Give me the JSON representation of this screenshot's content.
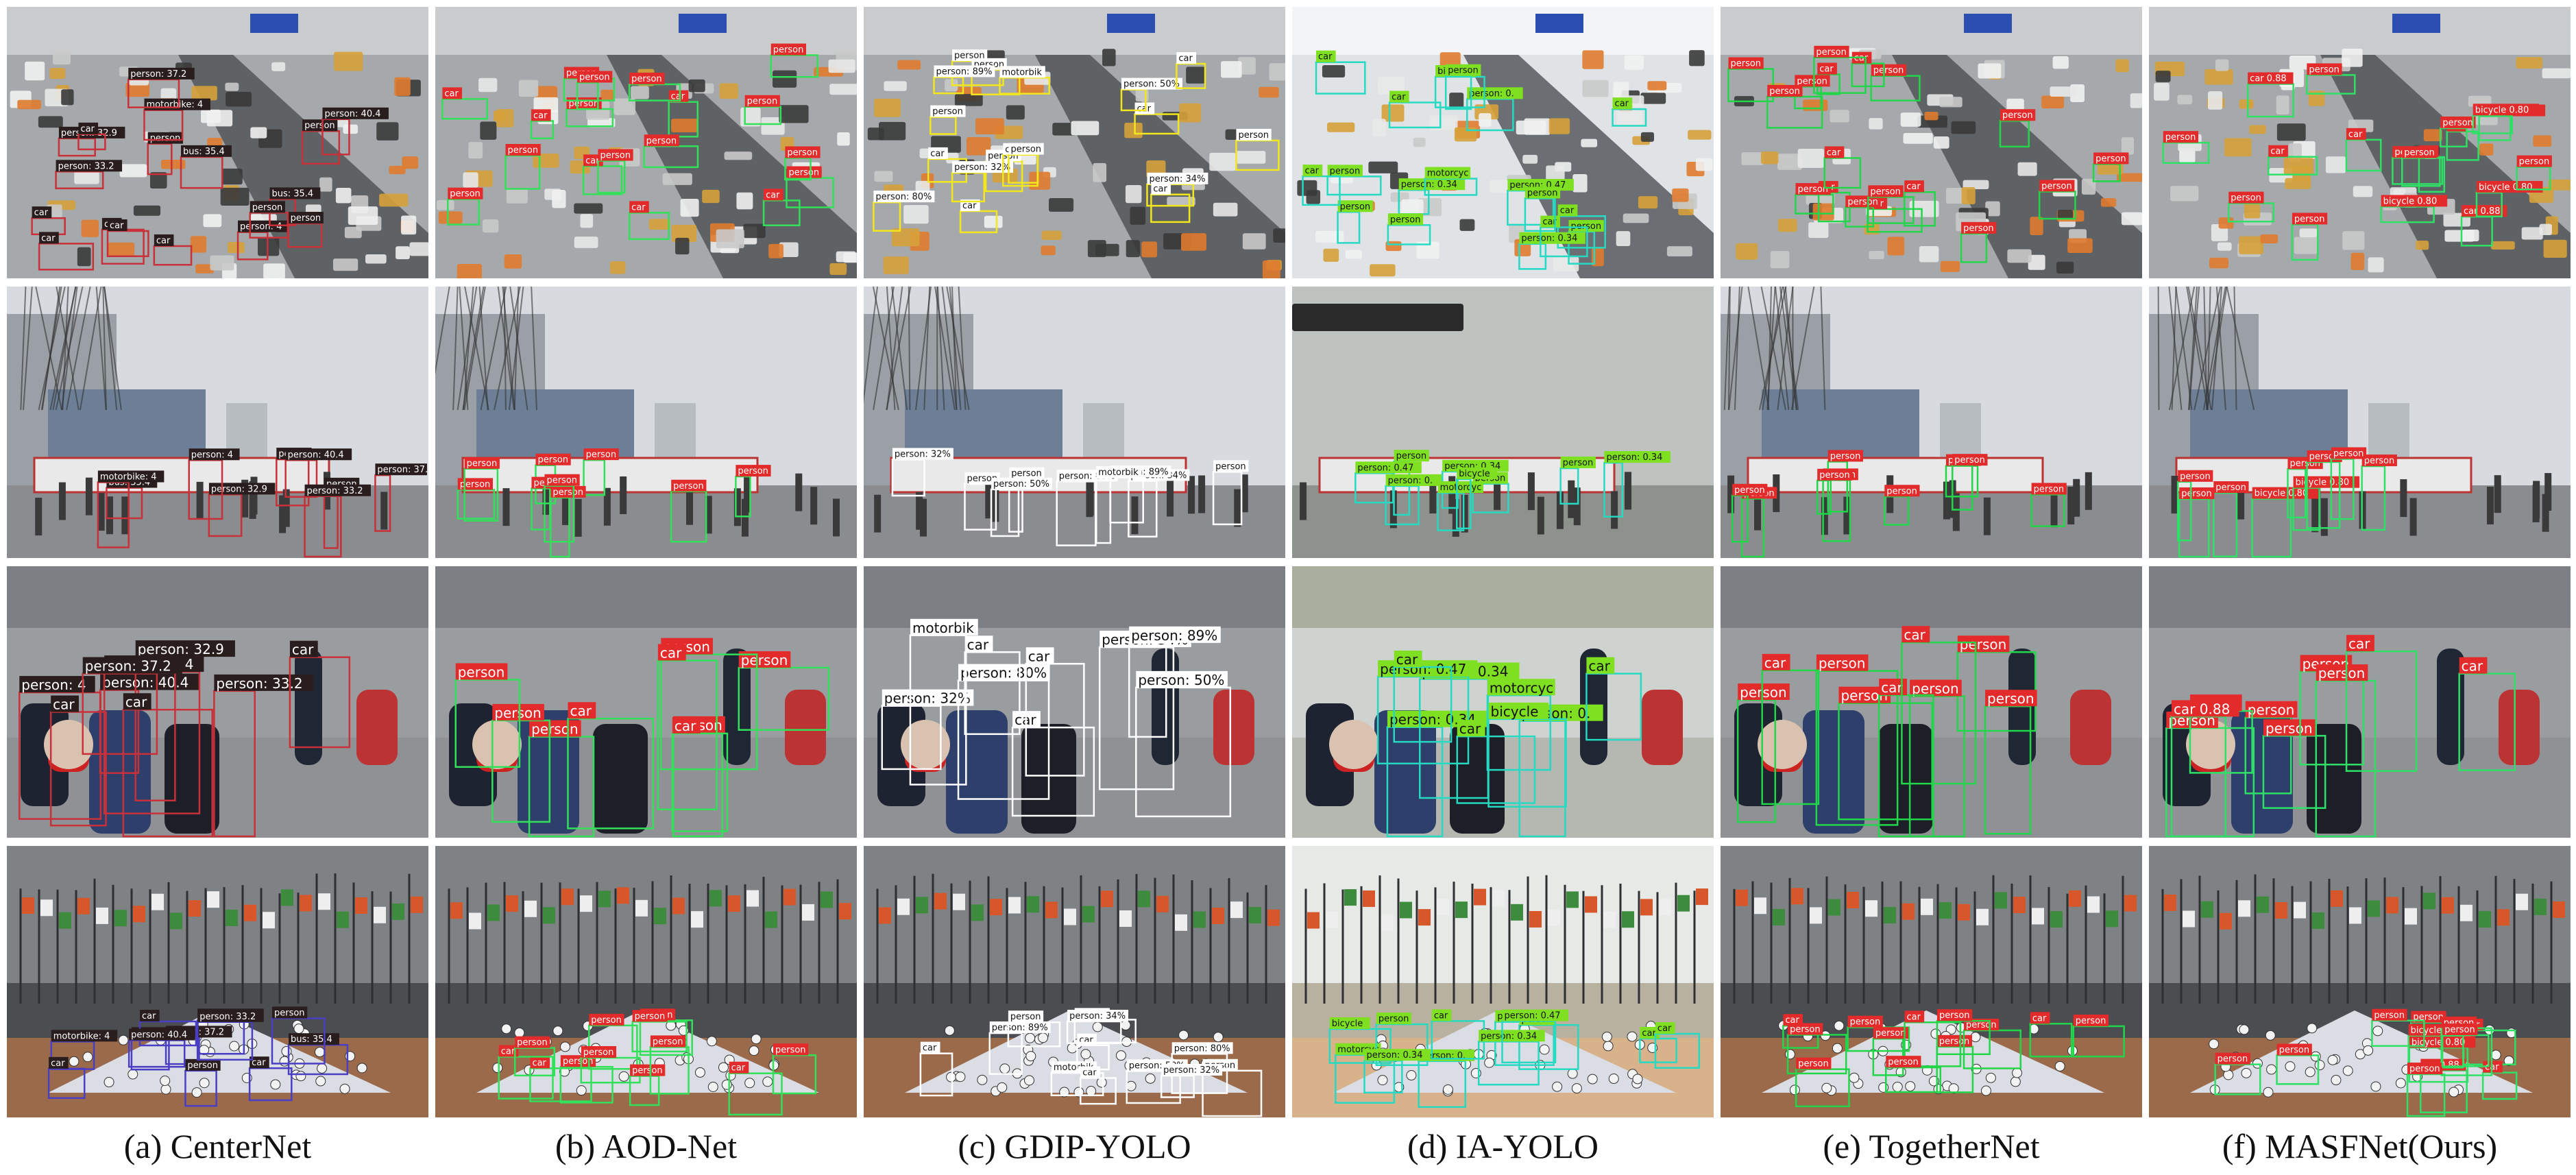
{
  "figure": {
    "columns": [
      {
        "caption": "(a) CenterNet",
        "box_color": "#c8313a",
        "label_bg": "#2a1d1d",
        "label_fg": "#ffffff",
        "labels": [
          "car",
          "car",
          "car",
          "bus: 35.4",
          "person",
          "person",
          "person: 40.4",
          "person: 32.9",
          "person: 33.2",
          "person: 4",
          "motorbike: 4",
          "person: 37.2"
        ]
      },
      {
        "caption": "(b) AOD-Net",
        "box_color": "#32e05a",
        "label_bg": "#e32b2b",
        "label_fg": "#ffffff",
        "labels": [
          "car",
          "car",
          "car",
          "person",
          "person",
          "person",
          "person",
          "person",
          "person",
          "person",
          "person",
          "person"
        ]
      },
      {
        "caption": "(c) GDIP-YOLO",
        "box_color": "#f2e61c",
        "label_bg": "#ffffff",
        "label_fg": "#111111",
        "labels": [
          "car",
          "car",
          "car",
          "person",
          "person",
          "person",
          "person: 80%",
          "person: 32%",
          "person: 34%",
          "person: 89%",
          "person: 50%",
          "motorbik"
        ]
      },
      {
        "caption": "(d) IA-YOLO",
        "box_color": "#26d9c2",
        "label_bg": "#7ee020",
        "label_fg": "#111111",
        "labels": [
          "car",
          "car",
          "car",
          "person",
          "person",
          "person",
          "person: 0.34",
          "person: 0.34",
          "person: 0.47",
          "person: 0.",
          "motorcyc",
          "bicycle"
        ]
      },
      {
        "caption": "(e) TogetherNet",
        "box_color": "#22d64a",
        "label_bg": "#e32b2b",
        "label_fg": "#ffffff",
        "labels": [
          "car",
          "car",
          "car",
          "person",
          "person",
          "person",
          "person",
          "person",
          "person",
          "person",
          "person",
          "person"
        ]
      },
      {
        "caption": "(f) MASFNet(Ours)",
        "box_color": "#2fe066",
        "label_bg": "#e32b2b",
        "label_fg": "#ffffff",
        "labels": [
          "car 0.88",
          "car",
          "car",
          "bicycle 0.80",
          "bicycle 0.80",
          "person",
          "person",
          "person",
          "person",
          "person",
          "person",
          "person"
        ]
      }
    ]
  }
}
